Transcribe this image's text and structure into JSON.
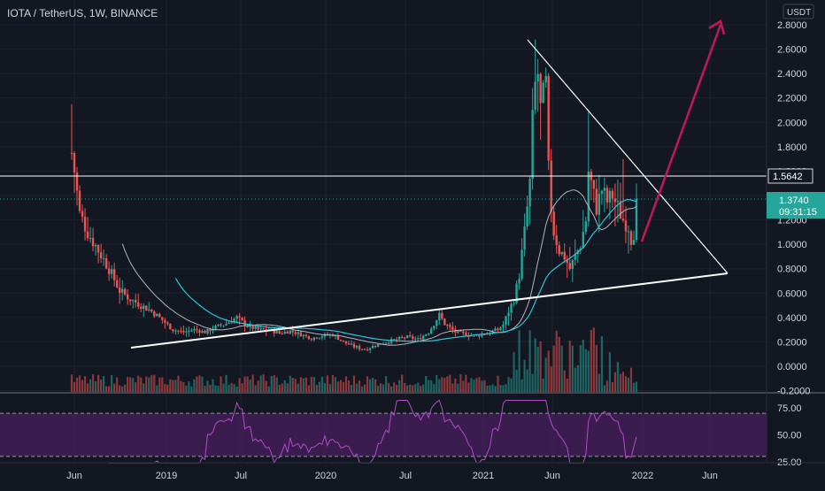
{
  "header": {
    "title": "IOTA / TetherUS, 1W, BINANCE",
    "currency": "USDT"
  },
  "price_labels": {
    "resistance": "1.5642",
    "last_price": "1.3740",
    "countdown": "09:31:15"
  },
  "colors": {
    "background": "#131722",
    "up": "#26a69a",
    "down": "#ef5350",
    "ma_fast": "#b2b5be",
    "ma_slow": "#26c6da",
    "rsi_line": "#b04cc8",
    "rsi_band": "#4a1f5e",
    "arrow": "#c2185b",
    "annotation": "#ffffff"
  },
  "chart_data": [
    {
      "type": "candlestick",
      "title": "IOTA / TetherUS, 1W, BINANCE",
      "x_ticks": [
        "Jun",
        "2019",
        "Jul",
        "2020",
        "Jul",
        "2021",
        "Jun",
        "2022",
        "Jun"
      ],
      "y_ticks": [
        "2.8000",
        "2.6000",
        "2.4000",
        "2.2000",
        "2.0000",
        "1.8000",
        "1.6000",
        "1.4000",
        "1.2000",
        "1.0000",
        "0.8000",
        "0.6000",
        "0.4000",
        "0.2000",
        "0.0000",
        "-0.2000"
      ],
      "ylim": [
        -0.2,
        2.9
      ],
      "grid": true,
      "series": [
        {
          "kind": "price",
          "keypoints": [
            [
              0,
              1.75
            ],
            [
              1,
              1.6
            ],
            [
              3,
              1.25
            ],
            [
              6,
              1.1
            ],
            [
              10,
              0.95
            ],
            [
              14,
              0.8
            ],
            [
              18,
              0.62
            ],
            [
              22,
              0.55
            ],
            [
              26,
              0.5
            ],
            [
              30,
              0.45
            ],
            [
              34,
              0.38
            ],
            [
              38,
              0.3
            ],
            [
              42,
              0.28
            ],
            [
              46,
              0.3
            ],
            [
              50,
              0.28
            ],
            [
              54,
              0.32
            ],
            [
              58,
              0.35
            ],
            [
              62,
              0.4
            ],
            [
              66,
              0.33
            ],
            [
              70,
              0.3
            ],
            [
              74,
              0.3
            ],
            [
              78,
              0.27
            ],
            [
              82,
              0.29
            ],
            [
              86,
              0.26
            ],
            [
              90,
              0.23
            ],
            [
              94,
              0.25
            ],
            [
              98,
              0.26
            ],
            [
              102,
              0.2
            ],
            [
              106,
              0.16
            ],
            [
              110,
              0.14
            ],
            [
              114,
              0.17
            ],
            [
              118,
              0.2
            ],
            [
              122,
              0.22
            ],
            [
              126,
              0.24
            ],
            [
              130,
              0.22
            ],
            [
              134,
              0.28
            ],
            [
              138,
              0.42
            ],
            [
              140,
              0.35
            ],
            [
              144,
              0.28
            ],
            [
              148,
              0.26
            ],
            [
              152,
              0.25
            ],
            [
              156,
              0.27
            ],
            [
              160,
              0.3
            ],
            [
              162,
              0.34
            ],
            [
              164,
              0.45
            ],
            [
              166,
              0.55
            ],
            [
              168,
              0.75
            ],
            [
              170,
              1.1
            ],
            [
              172,
              1.5
            ],
            [
              173,
              2.0
            ],
            [
              174,
              2.3
            ],
            [
              175,
              2.4
            ],
            [
              176,
              2.1
            ],
            [
              178,
              2.3
            ],
            [
              179,
              1.6
            ],
            [
              180,
              1.3
            ],
            [
              181,
              1.1
            ],
            [
              183,
              0.95
            ],
            [
              185,
              0.9
            ],
            [
              187,
              0.8
            ],
            [
              189,
              0.9
            ],
            [
              191,
              1.0
            ],
            [
              193,
              1.2
            ],
            [
              194,
              1.6
            ],
            [
              195,
              1.5
            ],
            [
              197,
              1.3
            ],
            [
              199,
              1.45
            ],
            [
              201,
              1.35
            ],
            [
              203,
              1.4
            ],
            [
              205,
              1.3
            ],
            [
              207,
              1.2
            ],
            [
              209,
              1.15
            ],
            [
              210,
              1.05
            ],
            [
              211,
              1.1
            ],
            [
              212,
              1.374
            ]
          ],
          "highs": [
            [
              0,
              2.15
            ],
            [
              174,
              2.68
            ],
            [
              194,
              2.1
            ],
            [
              207,
              1.7
            ]
          ],
          "note": "weekly candles, 212 bars"
        },
        {
          "kind": "annotation",
          "lines": [
            "ascending support trend line",
            "descending resistance trend line",
            "horizontal level 1.5642",
            "projected breakout arrow"
          ]
        }
      ]
    },
    {
      "type": "line",
      "title": "",
      "y_ticks": [
        "75.00",
        "50.00",
        "25.00"
      ],
      "ylim": [
        22,
        84
      ],
      "band": [
        30,
        70
      ]
    }
  ]
}
